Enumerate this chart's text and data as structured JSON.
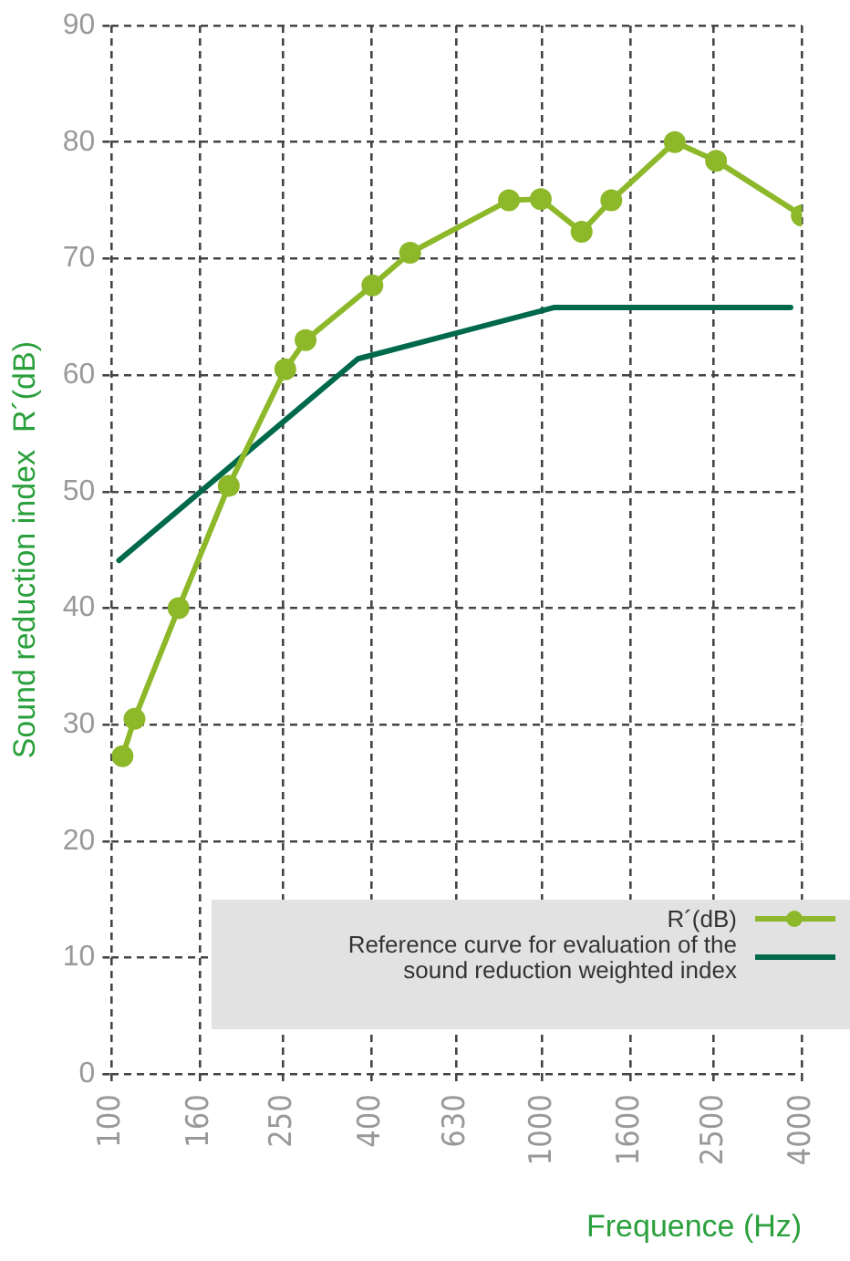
{
  "chart_data": {
    "type": "line",
    "xlabel": "Frequence (Hz)",
    "ylabel": "Sound reduction index  R´(dB)",
    "log": "x",
    "xlim": [
      100,
      4000
    ],
    "xticks": [
      100,
      160,
      250,
      400,
      630,
      1000,
      1600,
      2500,
      4000
    ],
    "ylim": [
      0,
      90
    ],
    "yticks": [
      0,
      10,
      20,
      30,
      40,
      50,
      60,
      70,
      80,
      90
    ],
    "grid": true,
    "legend": "bottom right",
    "series": [
      {
        "name": "R´(dB)",
        "color": "#8db829",
        "marker": "circle",
        "x": [
          106,
          113,
          143,
          187,
          253,
          282,
          403,
          493,
          836,
          991,
          1233,
          1445,
          2028,
          2529,
          4000
        ],
        "values": [
          27.3,
          30.5,
          40,
          50.5,
          60.5,
          63,
          67.7,
          70.5,
          75,
          75.1,
          72.3,
          75,
          80,
          78.4,
          73.7
        ]
      },
      {
        "name": "Reference curve for evaluation of the sound reduction weighted index",
        "color": "#00694c",
        "marker": "none",
        "x": [
          104,
          373,
          1062,
          3767
        ],
        "values": [
          44.1,
          61.4,
          65.8,
          65.8
        ]
      }
    ]
  }
}
